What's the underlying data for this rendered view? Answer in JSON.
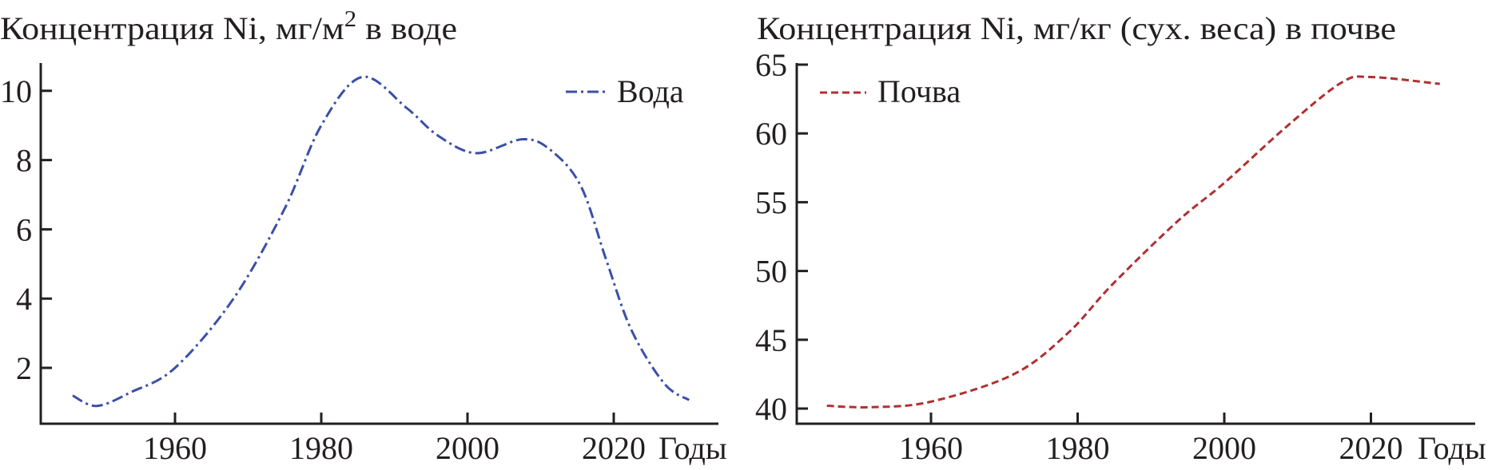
{
  "chart_data": [
    {
      "type": "line",
      "title": "Концентрация Ni, мг/м",
      "title_sup": "2",
      "title_tail": " в воде",
      "xlabel": "Годы",
      "xticks": [
        1960,
        1980,
        2000,
        2020
      ],
      "yticks": [
        2,
        4,
        6,
        8,
        10
      ],
      "xlim": [
        1941,
        2037
      ],
      "ylim": [
        0.4,
        10.8
      ],
      "grid": false,
      "legend_position": "top-right",
      "series": [
        {
          "name": "Вода",
          "color": "#3a4fa8",
          "dash": "dash-dot",
          "x": [
            1946,
            1949.3,
            1954,
            1960,
            1968,
            1975,
            1980,
            1985.6,
            1991.7,
            1996,
            2001.2,
            2007.5,
            2011.3,
            2015.5,
            2019,
            2022.4,
            2026.9,
            2030.3
          ],
          "y": [
            1.2,
            0.9,
            1.3,
            2.0,
            4.0,
            6.6,
            9.0,
            10.4,
            9.5,
            8.7,
            8.2,
            8.6,
            8.3,
            7.25,
            5.1,
            3.1,
            1.55,
            1.07
          ]
        }
      ]
    },
    {
      "type": "line",
      "title": "Концентрация Ni, мг/кг (сух. веса) в почве",
      "xlabel": "Годы",
      "xticks": [
        1960,
        1980,
        2000,
        2020
      ],
      "yticks": [
        40,
        45,
        50,
        55,
        60,
        65
      ],
      "xlim": [
        1941,
        2043
      ],
      "ylim": [
        39,
        65
      ],
      "grid": false,
      "legend_position": "top-left",
      "series": [
        {
          "name": "Почва",
          "color": "#b03030",
          "dash": "dashed",
          "x": [
            1945.8,
            1951.9,
            1960,
            1971.3,
            1978.7,
            1984.7,
            1993.6,
            2000,
            2008.5,
            2016,
            2020,
            2029.4
          ],
          "y": [
            40.2,
            40.1,
            40.5,
            42.5,
            45.5,
            49.0,
            53.6,
            56.4,
            60.5,
            63.7,
            64.1,
            63.6
          ]
        }
      ]
    }
  ]
}
